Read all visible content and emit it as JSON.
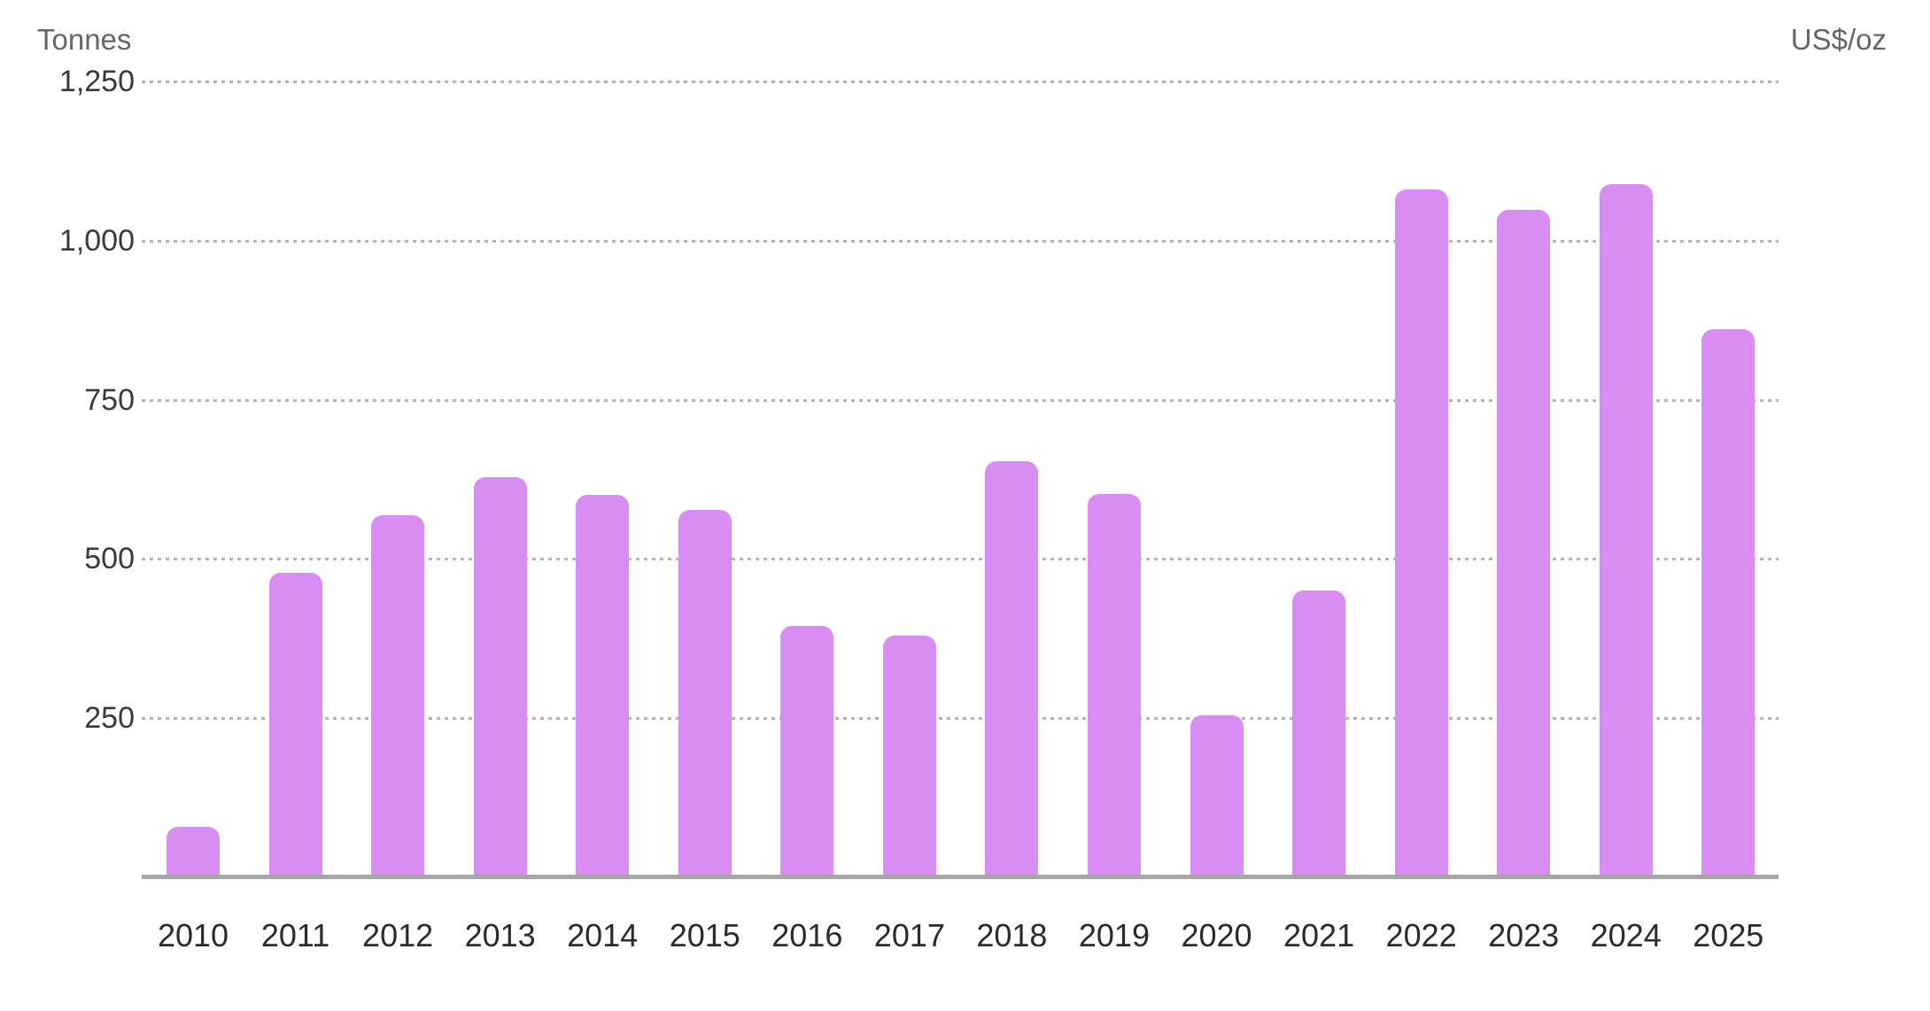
{
  "chart_data": {
    "type": "bar",
    "title": "",
    "ylabel_left": "Tonnes",
    "ylabel_right": "US$/oz",
    "ylim": [
      0,
      1250
    ],
    "grid": "horizontal-dotted",
    "legend_position": "none",
    "yticks": [
      {
        "value": 250,
        "label": "250"
      },
      {
        "value": 500,
        "label": "500"
      },
      {
        "value": 750,
        "label": "750"
      },
      {
        "value": 1000,
        "label": "1,000"
      },
      {
        "value": 1250,
        "label": "1,250"
      }
    ],
    "categories": [
      "2010",
      "2011",
      "2012",
      "2013",
      "2014",
      "2015",
      "2016",
      "2017",
      "2018",
      "2019",
      "2020",
      "2021",
      "2022",
      "2023",
      "2024",
      "2025"
    ],
    "series": [
      {
        "name": "Tonnes",
        "values": [
          79,
          478,
          569,
          629,
          600,
          577,
          395,
          379,
          653,
          602,
          255,
          450,
          1080,
          1049,
          1089,
          861
        ]
      }
    ],
    "colors": {
      "bar": "#d98df2",
      "grid": "#b5b5b5",
      "axis_line": "#a6a6a6",
      "tick_text": "#3a3a3a",
      "year_text": "#2b2b2b",
      "axis_title_text": "#666666",
      "background": "#ffffff"
    }
  }
}
